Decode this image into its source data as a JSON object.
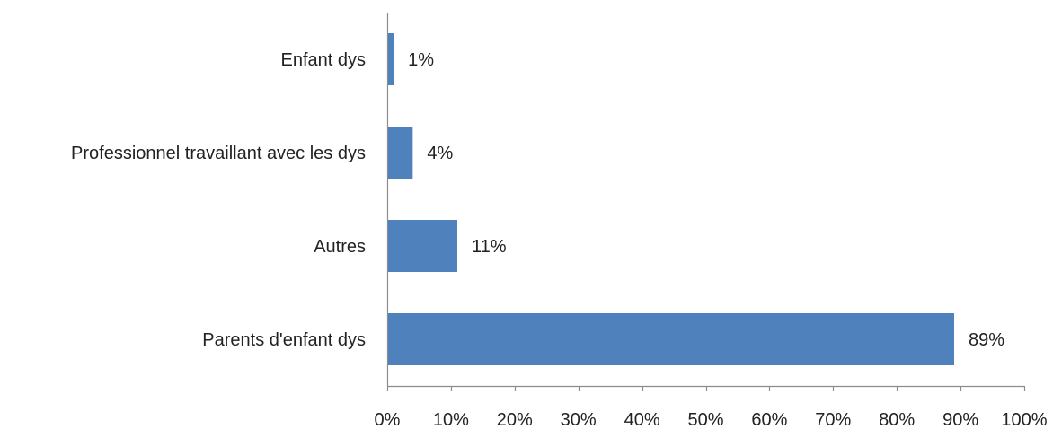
{
  "chart_data": {
    "type": "bar",
    "orientation": "horizontal",
    "categories": [
      "Enfant dys",
      "Professionnel travaillant avec les dys",
      "Autres",
      "Parents d'enfant dys"
    ],
    "values": [
      1,
      4,
      11,
      89
    ],
    "value_labels": [
      "1%",
      "4%",
      "11%",
      "89%"
    ],
    "xlim": [
      0,
      100
    ],
    "x_ticks": [
      "0%",
      "10%",
      "20%",
      "30%",
      "40%",
      "50%",
      "60%",
      "70%",
      "80%",
      "90%",
      "100%"
    ],
    "title": "",
    "xlabel": "",
    "ylabel": "",
    "grid": false,
    "bar_color": "#4f81bd"
  }
}
